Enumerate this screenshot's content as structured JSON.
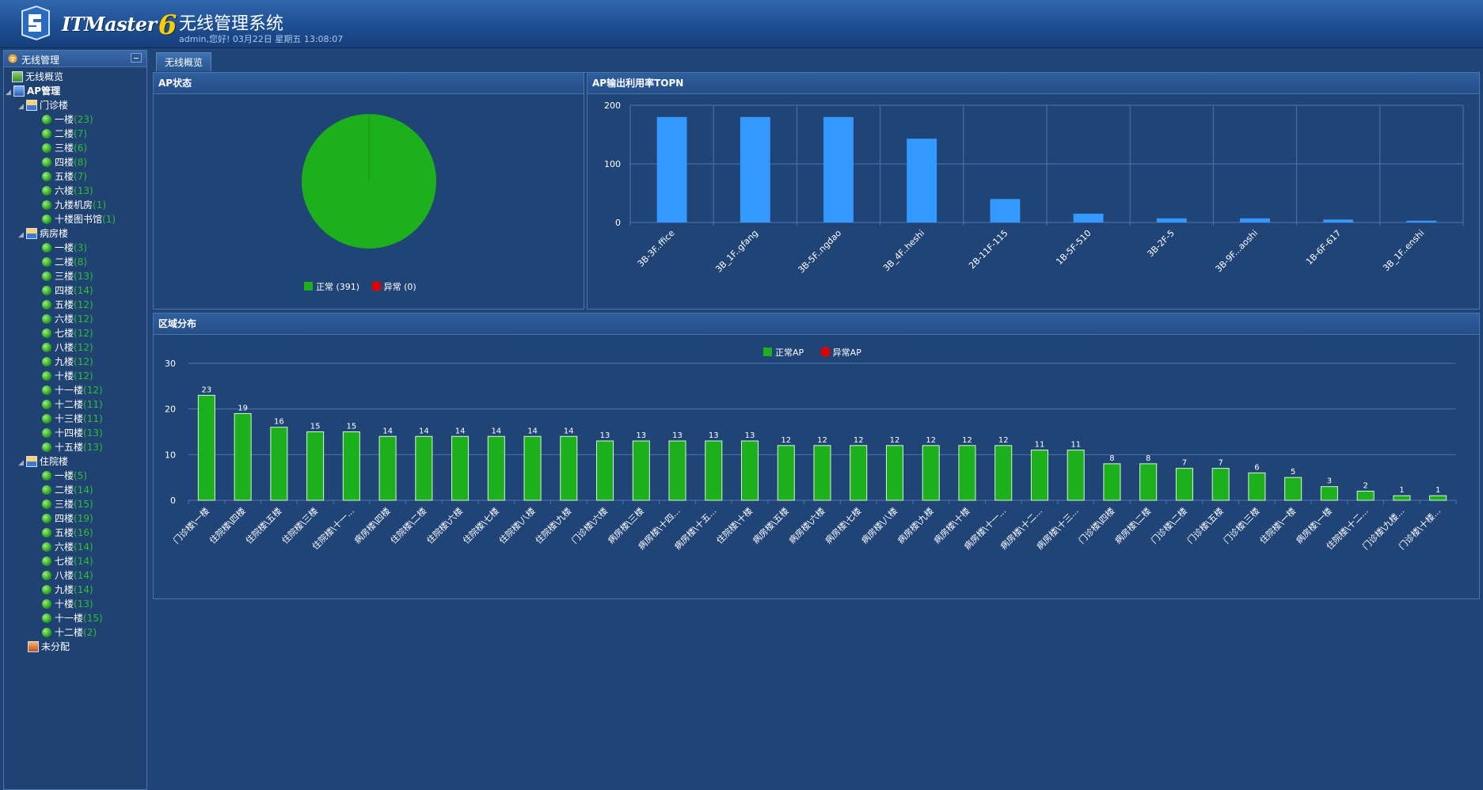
{
  "header": {
    "brand": "ITMaster",
    "brand_version": "6",
    "title": "无线管理系统",
    "user_info": "admin,您好! 03月22日 星期五 13:08:07"
  },
  "sidebar": {
    "title": "无线管理",
    "overview_label": "无线概览",
    "ap_mgmt_label": "AP管理",
    "unassigned_label": "未分配",
    "buildings": [
      {
        "name": "门诊楼",
        "floors": [
          {
            "label": "一楼",
            "count": "(23)"
          },
          {
            "label": "二楼",
            "count": "(7)"
          },
          {
            "label": "三楼",
            "count": "(6)"
          },
          {
            "label": "四楼",
            "count": "(8)"
          },
          {
            "label": "五楼",
            "count": "(7)"
          },
          {
            "label": "六楼",
            "count": "(13)"
          },
          {
            "label": "九楼机房",
            "count": "(1)"
          },
          {
            "label": "十楼图书馆",
            "count": "(1)"
          }
        ]
      },
      {
        "name": "病房楼",
        "floors": [
          {
            "label": "一楼",
            "count": "(3)"
          },
          {
            "label": "二楼",
            "count": "(8)"
          },
          {
            "label": "三楼",
            "count": "(13)"
          },
          {
            "label": "四楼",
            "count": "(14)"
          },
          {
            "label": "五楼",
            "count": "(12)"
          },
          {
            "label": "六楼",
            "count": "(12)"
          },
          {
            "label": "七楼",
            "count": "(12)"
          },
          {
            "label": "八楼",
            "count": "(12)"
          },
          {
            "label": "九楼",
            "count": "(12)"
          },
          {
            "label": "十楼",
            "count": "(12)"
          },
          {
            "label": "十一楼",
            "count": "(12)"
          },
          {
            "label": "十二楼",
            "count": "(11)"
          },
          {
            "label": "十三楼",
            "count": "(11)"
          },
          {
            "label": "十四楼",
            "count": "(13)"
          },
          {
            "label": "十五楼",
            "count": "(13)"
          }
        ]
      },
      {
        "name": "住院楼",
        "floors": [
          {
            "label": "一楼",
            "count": "(5)"
          },
          {
            "label": "二楼",
            "count": "(14)"
          },
          {
            "label": "三楼",
            "count": "(15)"
          },
          {
            "label": "四楼",
            "count": "(19)"
          },
          {
            "label": "五楼",
            "count": "(16)"
          },
          {
            "label": "六楼",
            "count": "(14)"
          },
          {
            "label": "七楼",
            "count": "(14)"
          },
          {
            "label": "八楼",
            "count": "(14)"
          },
          {
            "label": "九楼",
            "count": "(14)"
          },
          {
            "label": "十楼",
            "count": "(13)"
          },
          {
            "label": "十一楼",
            "count": "(15)"
          },
          {
            "label": "十二楼",
            "count": "(2)"
          }
        ]
      }
    ]
  },
  "tabs": [
    {
      "label": "无线概览"
    }
  ],
  "panels": {
    "status_title": "AP状态",
    "top_title": "AP输出利用率TOPN",
    "area_title": "区域分布"
  },
  "colors": {
    "normal": "#1db01d",
    "abnormal": "#e00000",
    "bar_blue": "#3399ff"
  },
  "chart_data": [
    {
      "type": "pie",
      "title": "AP状态",
      "legend": [
        "正常 (391)",
        "异常 (0)"
      ],
      "labels": [
        "正常",
        "异常"
      ],
      "values": [
        391,
        0
      ]
    },
    {
      "type": "bar",
      "title": "AP输出利用率TOPN",
      "categories": [
        "3B-3F..ffice",
        "3B_1F..gfang",
        "3B-5F..ngdao",
        "3B_4F..heshi",
        "2B-11F-115",
        "1B-5F-510",
        "3B-2F-5",
        "3B-9F...aoshi",
        "1B-6F-617",
        "3B_1F..enshi"
      ],
      "values": [
        180,
        180,
        180,
        143,
        40,
        15,
        7,
        7,
        5,
        3
      ],
      "yticks": [
        "0",
        "100",
        "200"
      ],
      "ylim": [
        0,
        200
      ]
    },
    {
      "type": "bar",
      "title": "区域分布",
      "legend": [
        "正常AP",
        "异常AP"
      ],
      "categories": [
        "门诊楼\\一楼",
        "住院楼\\四楼",
        "住院楼\\五楼",
        "住院楼\\三楼",
        "住院楼\\十一...",
        "病房楼\\四楼",
        "住院楼\\二楼",
        "住院楼\\六楼",
        "住院楼\\七楼",
        "住院楼\\八楼",
        "住院楼\\九楼",
        "门诊楼\\六楼",
        "病房楼\\三楼",
        "病房楼\\十四...",
        "病房楼\\十五...",
        "住院楼\\十楼",
        "病房楼\\五楼",
        "病房楼\\六楼",
        "病房楼\\七楼",
        "病房楼\\八楼",
        "病房楼\\九楼",
        "病房楼\\十楼",
        "病房楼\\十一...",
        "病房楼\\十二...",
        "病房楼\\十三...",
        "门诊楼\\四楼",
        "病房楼\\二楼",
        "门诊楼\\二楼",
        "门诊楼\\五楼",
        "门诊楼\\三楼",
        "住院楼\\一楼",
        "病房楼\\一楼",
        "住院楼\\十二...",
        "门诊楼\\九楼...",
        "门诊楼\\十楼..."
      ],
      "values": [
        23,
        19,
        16,
        15,
        15,
        14,
        14,
        14,
        14,
        14,
        14,
        13,
        13,
        13,
        13,
        13,
        12,
        12,
        12,
        12,
        12,
        12,
        12,
        11,
        11,
        8,
        8,
        7,
        7,
        6,
        5,
        3,
        2,
        1,
        1
      ],
      "yticks": [
        "0",
        "10",
        "20",
        "30"
      ],
      "ylim": [
        0,
        30
      ]
    }
  ]
}
